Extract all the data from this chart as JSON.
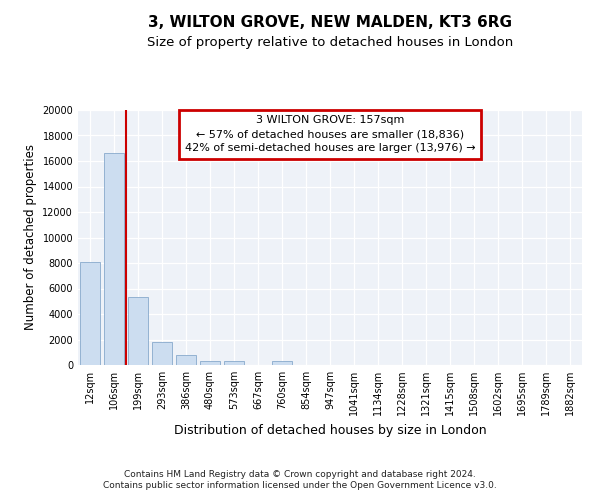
{
  "title_line1": "3, WILTON GROVE, NEW MALDEN, KT3 6RG",
  "title_line2": "Size of property relative to detached houses in London",
  "xlabel": "Distribution of detached houses by size in London",
  "ylabel": "Number of detached properties",
  "bar_color": "#ccddf0",
  "bar_edge_color": "#88aacc",
  "categories": [
    "12sqm",
    "106sqm",
    "199sqm",
    "293sqm",
    "386sqm",
    "480sqm",
    "573sqm",
    "667sqm",
    "760sqm",
    "854sqm",
    "947sqm",
    "1041sqm",
    "1134sqm",
    "1228sqm",
    "1321sqm",
    "1415sqm",
    "1508sqm",
    "1602sqm",
    "1695sqm",
    "1789sqm",
    "1882sqm"
  ],
  "values": [
    8100,
    16600,
    5300,
    1800,
    800,
    300,
    300,
    0,
    300,
    0,
    0,
    0,
    0,
    0,
    0,
    0,
    0,
    0,
    0,
    0,
    0
  ],
  "ylim": [
    0,
    20000
  ],
  "yticks": [
    0,
    2000,
    4000,
    6000,
    8000,
    10000,
    12000,
    14000,
    16000,
    18000,
    20000
  ],
  "red_line_x": 1.5,
  "property_label": "3 WILTON GROVE: 157sqm",
  "annotation_line1": "← 57% of detached houses are smaller (18,836)",
  "annotation_line2": "42% of semi-detached houses are larger (13,976) →",
  "annotation_box_color": "#ffffff",
  "annotation_box_edge": "#cc0000",
  "red_line_color": "#cc0000",
  "footer_line1": "Contains HM Land Registry data © Crown copyright and database right 2024.",
  "footer_line2": "Contains public sector information licensed under the Open Government Licence v3.0.",
  "bg_color": "#eef2f8",
  "grid_color": "#ffffff",
  "title_fontsize": 11,
  "subtitle_fontsize": 9.5,
  "ylabel_fontsize": 8.5,
  "xlabel_fontsize": 9,
  "tick_fontsize": 7,
  "annot_fontsize": 8
}
